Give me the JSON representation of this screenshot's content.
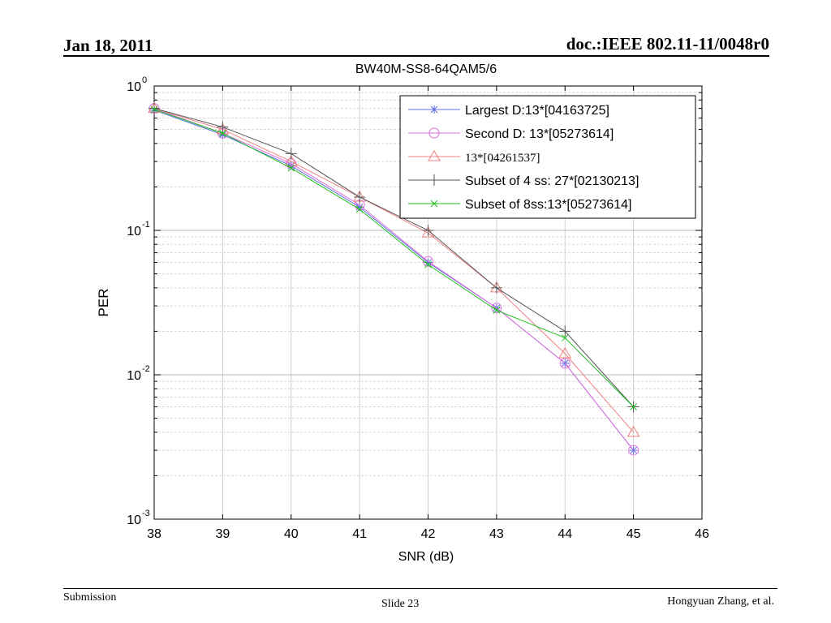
{
  "header": {
    "date": "Jan 18, 2011",
    "doc": "doc.:IEEE 802.11-11/0048r0"
  },
  "footer": {
    "left": "Submission",
    "center": "Slide 23",
    "right": "Hongyuan Zhang, et al."
  },
  "chart_data": {
    "type": "line",
    "title": "BW40M-SS8-64QAM5/6",
    "xlabel": "SNR (dB)",
    "ylabel": "PER",
    "yscale": "log",
    "xlim": [
      38,
      46
    ],
    "ylim": [
      0.001,
      1
    ],
    "xticks": [
      "38",
      "39",
      "40",
      "41",
      "42",
      "43",
      "44",
      "45",
      "46"
    ],
    "yticks": [
      {
        "base": "10",
        "exp": "0",
        "value": 1
      },
      {
        "base": "10",
        "exp": "-1",
        "value": 0.1
      },
      {
        "base": "10",
        "exp": "-2",
        "value": 0.01
      },
      {
        "base": "10",
        "exp": "-3",
        "value": 0.001
      }
    ],
    "grid": true,
    "legend_position": "top-right",
    "x": [
      38,
      39,
      40,
      41,
      42,
      43,
      44,
      45
    ],
    "series": [
      {
        "name": "Largest D:13*[04163725]",
        "color": "#5b6ee0",
        "marker": "star",
        "values": [
          0.68,
          0.46,
          0.28,
          0.145,
          0.06,
          0.029,
          0.012,
          0.003
        ]
      },
      {
        "name": "Second D: 13*[05273614]",
        "color": "#e070e0",
        "marker": "circle",
        "values": [
          0.7,
          0.47,
          0.29,
          0.15,
          0.061,
          0.029,
          0.012,
          0.003
        ]
      },
      {
        "name": "13*[04261537]",
        "color": "#f08080",
        "marker": "triangle",
        "values": [
          0.7,
          0.5,
          0.3,
          0.17,
          0.096,
          0.04,
          0.014,
          0.004
        ]
      },
      {
        "name": "Subset of 4 ss: 27*[02130213]",
        "color": "#555555",
        "marker": "plus",
        "values": [
          0.7,
          0.52,
          0.34,
          0.17,
          0.1,
          0.04,
          0.02,
          0.006
        ]
      },
      {
        "name": "Subset of 8ss:13*[05273614]",
        "color": "#20c020",
        "marker": "x",
        "values": [
          0.69,
          0.47,
          0.27,
          0.14,
          0.058,
          0.028,
          0.018,
          0.006
        ]
      }
    ]
  }
}
